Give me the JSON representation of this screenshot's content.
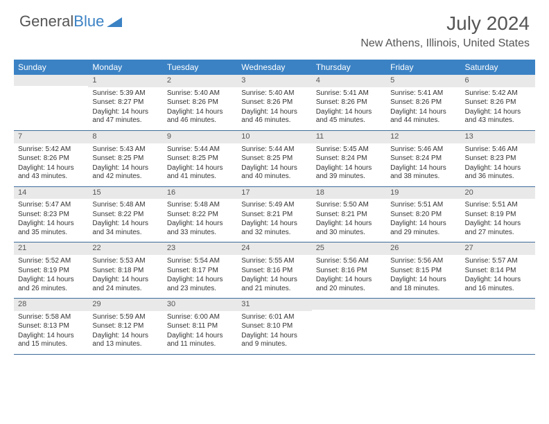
{
  "brand": {
    "word1": "General",
    "word2": "Blue"
  },
  "title": "July 2024",
  "location": "New Athens, Illinois, United States",
  "colors": {
    "header_bg": "#3b82c4",
    "header_text": "#ffffff",
    "daynum_bg": "#e9e9e9",
    "text": "#333333",
    "week_border": "#3b6a9a",
    "title_color": "#555555"
  },
  "typography": {
    "title_fontsize": 28,
    "location_fontsize": 16,
    "dayhead_fontsize": 12,
    "cell_fontsize": 10
  },
  "day_headers": [
    "Sunday",
    "Monday",
    "Tuesday",
    "Wednesday",
    "Thursday",
    "Friday",
    "Saturday"
  ],
  "weeks": [
    [
      {
        "day": "",
        "sunrise": "",
        "sunset": "",
        "daylight": ""
      },
      {
        "day": "1",
        "sunrise": "Sunrise: 5:39 AM",
        "sunset": "Sunset: 8:27 PM",
        "daylight": "Daylight: 14 hours and 47 minutes."
      },
      {
        "day": "2",
        "sunrise": "Sunrise: 5:40 AM",
        "sunset": "Sunset: 8:26 PM",
        "daylight": "Daylight: 14 hours and 46 minutes."
      },
      {
        "day": "3",
        "sunrise": "Sunrise: 5:40 AM",
        "sunset": "Sunset: 8:26 PM",
        "daylight": "Daylight: 14 hours and 46 minutes."
      },
      {
        "day": "4",
        "sunrise": "Sunrise: 5:41 AM",
        "sunset": "Sunset: 8:26 PM",
        "daylight": "Daylight: 14 hours and 45 minutes."
      },
      {
        "day": "5",
        "sunrise": "Sunrise: 5:41 AM",
        "sunset": "Sunset: 8:26 PM",
        "daylight": "Daylight: 14 hours and 44 minutes."
      },
      {
        "day": "6",
        "sunrise": "Sunrise: 5:42 AM",
        "sunset": "Sunset: 8:26 PM",
        "daylight": "Daylight: 14 hours and 43 minutes."
      }
    ],
    [
      {
        "day": "7",
        "sunrise": "Sunrise: 5:42 AM",
        "sunset": "Sunset: 8:26 PM",
        "daylight": "Daylight: 14 hours and 43 minutes."
      },
      {
        "day": "8",
        "sunrise": "Sunrise: 5:43 AM",
        "sunset": "Sunset: 8:25 PM",
        "daylight": "Daylight: 14 hours and 42 minutes."
      },
      {
        "day": "9",
        "sunrise": "Sunrise: 5:44 AM",
        "sunset": "Sunset: 8:25 PM",
        "daylight": "Daylight: 14 hours and 41 minutes."
      },
      {
        "day": "10",
        "sunrise": "Sunrise: 5:44 AM",
        "sunset": "Sunset: 8:25 PM",
        "daylight": "Daylight: 14 hours and 40 minutes."
      },
      {
        "day": "11",
        "sunrise": "Sunrise: 5:45 AM",
        "sunset": "Sunset: 8:24 PM",
        "daylight": "Daylight: 14 hours and 39 minutes."
      },
      {
        "day": "12",
        "sunrise": "Sunrise: 5:46 AM",
        "sunset": "Sunset: 8:24 PM",
        "daylight": "Daylight: 14 hours and 38 minutes."
      },
      {
        "day": "13",
        "sunrise": "Sunrise: 5:46 AM",
        "sunset": "Sunset: 8:23 PM",
        "daylight": "Daylight: 14 hours and 36 minutes."
      }
    ],
    [
      {
        "day": "14",
        "sunrise": "Sunrise: 5:47 AM",
        "sunset": "Sunset: 8:23 PM",
        "daylight": "Daylight: 14 hours and 35 minutes."
      },
      {
        "day": "15",
        "sunrise": "Sunrise: 5:48 AM",
        "sunset": "Sunset: 8:22 PM",
        "daylight": "Daylight: 14 hours and 34 minutes."
      },
      {
        "day": "16",
        "sunrise": "Sunrise: 5:48 AM",
        "sunset": "Sunset: 8:22 PM",
        "daylight": "Daylight: 14 hours and 33 minutes."
      },
      {
        "day": "17",
        "sunrise": "Sunrise: 5:49 AM",
        "sunset": "Sunset: 8:21 PM",
        "daylight": "Daylight: 14 hours and 32 minutes."
      },
      {
        "day": "18",
        "sunrise": "Sunrise: 5:50 AM",
        "sunset": "Sunset: 8:21 PM",
        "daylight": "Daylight: 14 hours and 30 minutes."
      },
      {
        "day": "19",
        "sunrise": "Sunrise: 5:51 AM",
        "sunset": "Sunset: 8:20 PM",
        "daylight": "Daylight: 14 hours and 29 minutes."
      },
      {
        "day": "20",
        "sunrise": "Sunrise: 5:51 AM",
        "sunset": "Sunset: 8:19 PM",
        "daylight": "Daylight: 14 hours and 27 minutes."
      }
    ],
    [
      {
        "day": "21",
        "sunrise": "Sunrise: 5:52 AM",
        "sunset": "Sunset: 8:19 PM",
        "daylight": "Daylight: 14 hours and 26 minutes."
      },
      {
        "day": "22",
        "sunrise": "Sunrise: 5:53 AM",
        "sunset": "Sunset: 8:18 PM",
        "daylight": "Daylight: 14 hours and 24 minutes."
      },
      {
        "day": "23",
        "sunrise": "Sunrise: 5:54 AM",
        "sunset": "Sunset: 8:17 PM",
        "daylight": "Daylight: 14 hours and 23 minutes."
      },
      {
        "day": "24",
        "sunrise": "Sunrise: 5:55 AM",
        "sunset": "Sunset: 8:16 PM",
        "daylight": "Daylight: 14 hours and 21 minutes."
      },
      {
        "day": "25",
        "sunrise": "Sunrise: 5:56 AM",
        "sunset": "Sunset: 8:16 PM",
        "daylight": "Daylight: 14 hours and 20 minutes."
      },
      {
        "day": "26",
        "sunrise": "Sunrise: 5:56 AM",
        "sunset": "Sunset: 8:15 PM",
        "daylight": "Daylight: 14 hours and 18 minutes."
      },
      {
        "day": "27",
        "sunrise": "Sunrise: 5:57 AM",
        "sunset": "Sunset: 8:14 PM",
        "daylight": "Daylight: 14 hours and 16 minutes."
      }
    ],
    [
      {
        "day": "28",
        "sunrise": "Sunrise: 5:58 AM",
        "sunset": "Sunset: 8:13 PM",
        "daylight": "Daylight: 14 hours and 15 minutes."
      },
      {
        "day": "29",
        "sunrise": "Sunrise: 5:59 AM",
        "sunset": "Sunset: 8:12 PM",
        "daylight": "Daylight: 14 hours and 13 minutes."
      },
      {
        "day": "30",
        "sunrise": "Sunrise: 6:00 AM",
        "sunset": "Sunset: 8:11 PM",
        "daylight": "Daylight: 14 hours and 11 minutes."
      },
      {
        "day": "31",
        "sunrise": "Sunrise: 6:01 AM",
        "sunset": "Sunset: 8:10 PM",
        "daylight": "Daylight: 14 hours and 9 minutes."
      },
      {
        "day": "",
        "sunrise": "",
        "sunset": "",
        "daylight": ""
      },
      {
        "day": "",
        "sunrise": "",
        "sunset": "",
        "daylight": ""
      },
      {
        "day": "",
        "sunrise": "",
        "sunset": "",
        "daylight": ""
      }
    ]
  ]
}
